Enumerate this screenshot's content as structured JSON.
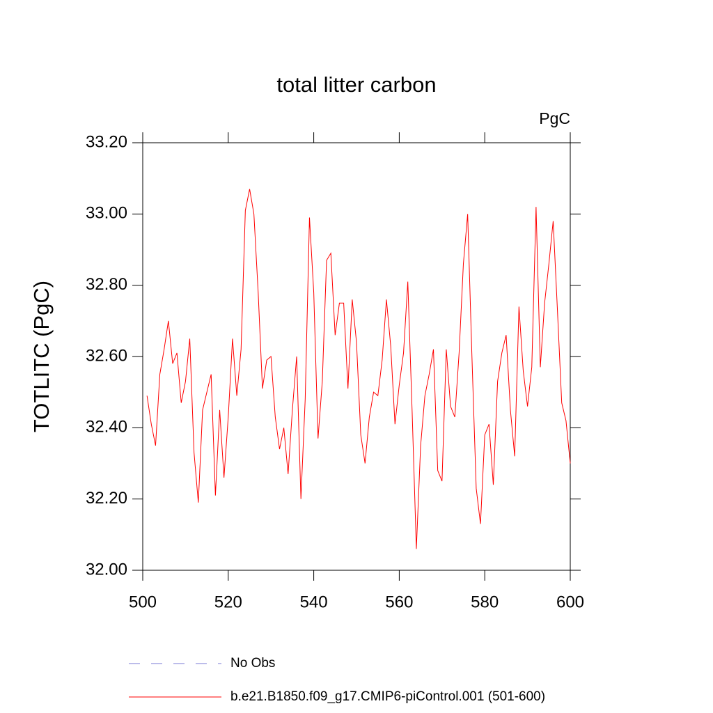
{
  "chart_data": {
    "type": "line",
    "title": "total litter carbon",
    "units": "PgC",
    "y_label": "TOTLITC  (PgC)",
    "x": [
      501,
      502,
      503,
      504,
      505,
      506,
      507,
      508,
      509,
      510,
      511,
      512,
      513,
      514,
      515,
      516,
      517,
      518,
      519,
      520,
      521,
      522,
      523,
      524,
      525,
      526,
      527,
      528,
      529,
      530,
      531,
      532,
      533,
      534,
      535,
      536,
      537,
      538,
      539,
      540,
      541,
      542,
      543,
      544,
      545,
      546,
      547,
      548,
      549,
      550,
      551,
      552,
      553,
      554,
      555,
      556,
      557,
      558,
      559,
      560,
      561,
      562,
      563,
      564,
      565,
      566,
      567,
      568,
      569,
      570,
      571,
      572,
      573,
      574,
      575,
      576,
      577,
      578,
      579,
      580,
      581,
      582,
      583,
      584,
      585,
      586,
      587,
      588,
      589,
      590,
      591,
      592,
      593,
      594,
      595,
      596,
      597,
      598,
      599,
      600
    ],
    "series": [
      {
        "name": "b.e21.B1850.f09_g17.CMIP6-piControl.001 (501-600)",
        "color": "#ff0000",
        "values": [
          32.49,
          32.41,
          32.35,
          32.55,
          32.62,
          32.7,
          32.58,
          32.61,
          32.47,
          32.53,
          32.65,
          32.33,
          32.19,
          32.45,
          32.5,
          32.55,
          32.21,
          32.45,
          32.26,
          32.43,
          32.65,
          32.49,
          32.62,
          33.01,
          33.07,
          33.0,
          32.78,
          32.51,
          32.59,
          32.6,
          32.43,
          32.34,
          32.4,
          32.27,
          32.45,
          32.6,
          32.2,
          32.48,
          32.99,
          32.78,
          32.37,
          32.53,
          32.87,
          32.89,
          32.66,
          32.75,
          32.75,
          32.51,
          32.76,
          32.64,
          32.38,
          32.3,
          32.43,
          32.5,
          32.49,
          32.59,
          32.76,
          32.63,
          32.41,
          32.52,
          32.61,
          32.81,
          32.45,
          32.06,
          32.35,
          32.49,
          32.55,
          32.62,
          32.28,
          32.25,
          32.62,
          32.46,
          32.43,
          32.61,
          32.86,
          33.0,
          32.6,
          32.23,
          32.13,
          32.38,
          32.41,
          32.24,
          32.53,
          32.61,
          32.66,
          32.45,
          32.32,
          32.74,
          32.56,
          32.46,
          32.57,
          33.02,
          32.57,
          32.75,
          32.86,
          32.98,
          32.73,
          32.47,
          32.42,
          32.3
        ]
      }
    ],
    "obs_legend": {
      "name": "No Obs",
      "color": "#7a7ad6",
      "dashed": true
    },
    "xlim": [
      500,
      600
    ],
    "xticks": [
      500,
      520,
      540,
      560,
      580,
      600
    ],
    "ylim": [
      32.0,
      33.2
    ],
    "yticks": [
      {
        "value": 32.0,
        "label": "32.00"
      },
      {
        "value": 32.2,
        "label": "32.20"
      },
      {
        "value": 32.4,
        "label": "32.40"
      },
      {
        "value": 32.6,
        "label": "32.60"
      },
      {
        "value": 32.8,
        "label": "32.80"
      },
      {
        "value": 33.0,
        "label": "33.00"
      },
      {
        "value": 33.2,
        "label": "33.20"
      }
    ],
    "grid": false
  }
}
